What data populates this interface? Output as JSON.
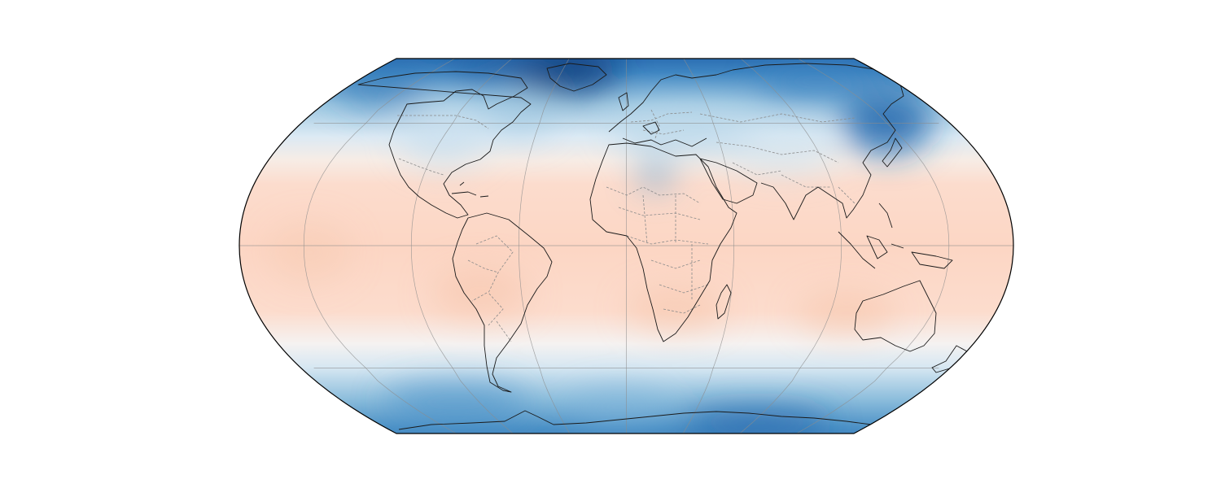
{
  "map": {
    "projection": "Robinson",
    "central_longitude": 0,
    "gridlines": {
      "longitudes_deg": [
        -150,
        -100,
        -50,
        0,
        50,
        100,
        150
      ],
      "latitudes_deg": [
        -60,
        0,
        60
      ]
    },
    "colormap": "RdBu_r",
    "colors": {
      "deep_cold": "#08306b",
      "cold": "#2f7bbd",
      "cool": "#9ecae1",
      "neutral": "#f7f7f7",
      "warm": "#fbd4c0",
      "warmest": "#f6bba0",
      "coastline": "#1a1a1a",
      "borders": "#8a8a8a",
      "grid": "#8c8c8c"
    },
    "features": [
      "coastlines",
      "country-borders",
      "gridlines"
    ]
  }
}
